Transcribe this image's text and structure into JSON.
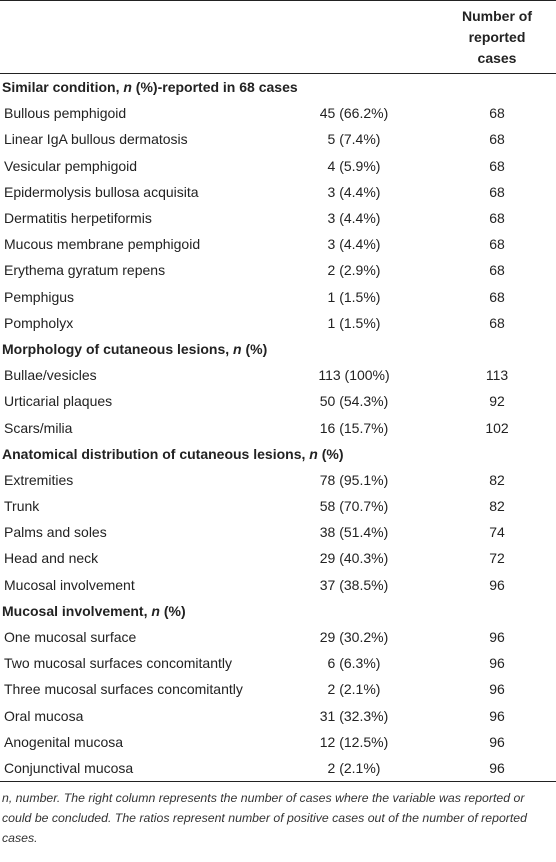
{
  "header": {
    "col1": "",
    "col2": "",
    "col3_line1": "Number of reported",
    "col3_line2": "cases"
  },
  "sections": [
    {
      "title_prefix": "Similar condition, ",
      "title_n": "n",
      "title_suffix": " (%)-reported in 68 cases",
      "rows": [
        {
          "label": "Bullous pemphigoid",
          "value": "45 (66.2%)",
          "reported": "68"
        },
        {
          "label": "Linear IgA bullous dermatosis",
          "value": "5 (7.4%)",
          "reported": "68"
        },
        {
          "label": "Vesicular pemphigoid",
          "value": "4 (5.9%)",
          "reported": "68"
        },
        {
          "label": "Epidermolysis bullosa acquisita",
          "value": "3 (4.4%)",
          "reported": "68"
        },
        {
          "label": "Dermatitis herpetiformis",
          "value": "3 (4.4%)",
          "reported": "68"
        },
        {
          "label": "Mucous membrane pemphigoid",
          "value": "3 (4.4%)",
          "reported": "68"
        },
        {
          "label": "Erythema gyratum repens",
          "value": "2 (2.9%)",
          "reported": "68"
        },
        {
          "label": "Pemphigus",
          "value": "1 (1.5%)",
          "reported": "68"
        },
        {
          "label": "Pompholyx",
          "value": "1 (1.5%)",
          "reported": "68"
        }
      ]
    },
    {
      "title_prefix": "Morphology of cutaneous lesions, ",
      "title_n": "n",
      "title_suffix": " (%)",
      "rows": [
        {
          "label": "Bullae/vesicles",
          "value": "113 (100%)",
          "reported": "113"
        },
        {
          "label": "Urticarial plaques",
          "value": "50 (54.3%)",
          "reported": "92"
        },
        {
          "label": "Scars/milia",
          "value": "16 (15.7%)",
          "reported": "102"
        }
      ]
    },
    {
      "title_prefix": "Anatomical distribution of cutaneous lesions, ",
      "title_n": "n",
      "title_suffix": " (%)",
      "rows": [
        {
          "label": "Extremities",
          "value": "78 (95.1%)",
          "reported": "82"
        },
        {
          "label": "Trunk",
          "value": "58 (70.7%)",
          "reported": "82"
        },
        {
          "label": "Palms and soles",
          "value": "38 (51.4%)",
          "reported": "74"
        },
        {
          "label": "Head and neck",
          "value": "29 (40.3%)",
          "reported": "72"
        },
        {
          "label": "Mucosal involvement",
          "value": "37 (38.5%)",
          "reported": "96"
        }
      ]
    },
    {
      "title_prefix": "Mucosal involvement, ",
      "title_n": "n",
      "title_suffix": " (%)",
      "rows": [
        {
          "label": "One mucosal surface",
          "value": "29 (30.2%)",
          "reported": "96"
        },
        {
          "label": "Two mucosal surfaces concomitantly",
          "value": "6 (6.3%)",
          "reported": "96"
        },
        {
          "label": "Three mucosal surfaces concomitantly",
          "value": "2 (2.1%)",
          "reported": "96"
        },
        {
          "label": "Oral mucosa",
          "value": "31 (32.3%)",
          "reported": "96"
        },
        {
          "label": "Anogenital mucosa",
          "value": "12 (12.5%)",
          "reported": "96"
        },
        {
          "label": "Conjunctival mucosa",
          "value": "2 (2.1%)",
          "reported": "96"
        }
      ]
    }
  ],
  "footnote": "n, number. The right column represents the number of cases where the variable was reported or could be concluded. The ratios represent number of positive cases out of the number of reported cases."
}
